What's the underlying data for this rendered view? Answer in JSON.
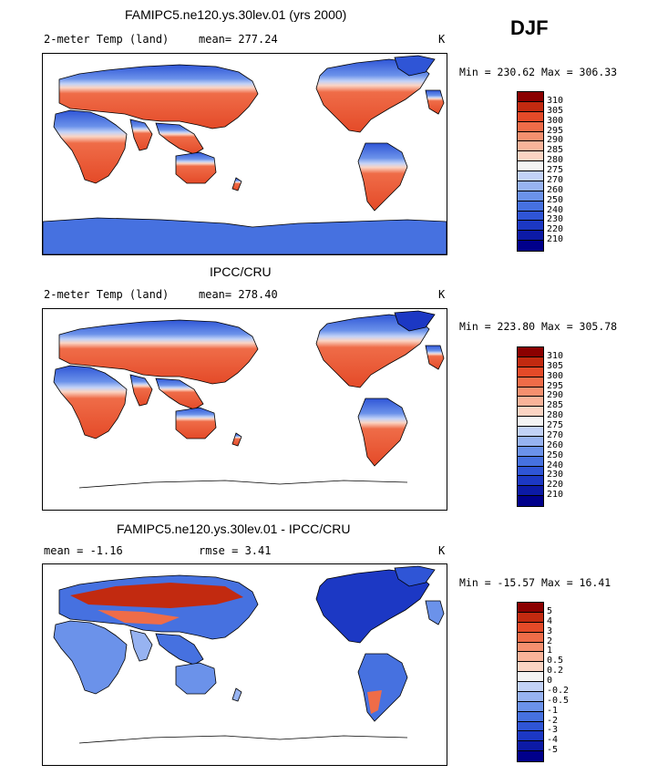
{
  "season": "DJF",
  "colors": {
    "abs": [
      "#00008b",
      "#0c1aa6",
      "#1c38c4",
      "#2f55d6",
      "#4671e0",
      "#6b92ea",
      "#97b3f1",
      "#c2d2f7",
      "#f4f4f4",
      "#fbd4c3",
      "#f9b399",
      "#f5906f",
      "#ef6c48",
      "#e44a28",
      "#c22a10",
      "#8b0000"
    ],
    "diff": [
      "#00008b",
      "#0c1aa6",
      "#1c38c4",
      "#2f55d6",
      "#4671e0",
      "#6b92ea",
      "#97b3f1",
      "#c2d2f7",
      "#f4f4f4",
      "#fbd4c3",
      "#f9b399",
      "#f5906f",
      "#ef6c48",
      "#e44a28",
      "#c22a10",
      "#8b0000"
    ]
  },
  "panels": [
    {
      "title": "FAMIPC5.ne120.ys.30lev.01 (yrs 2000)",
      "variable": "2-meter Temp (land)",
      "stat": "mean= 277.24",
      "units": "K",
      "min_max": "Min = 230.62 Max = 306.33",
      "ticks": [
        "310",
        "305",
        "300",
        "295",
        "290",
        "285",
        "280",
        "275",
        "270",
        "260",
        "250",
        "240",
        "230",
        "220",
        "210"
      ]
    },
    {
      "title": "IPCC/CRU",
      "variable": "2-meter Temp (land)",
      "stat": "mean= 278.40",
      "units": "K",
      "min_max": "Min = 223.80 Max = 305.78",
      "ticks": [
        "310",
        "305",
        "300",
        "295",
        "290",
        "285",
        "280",
        "275",
        "270",
        "260",
        "250",
        "240",
        "230",
        "220",
        "210"
      ]
    },
    {
      "title": "FAMIPC5.ne120.ys.30lev.01 - IPCC/CRU",
      "variable": "mean =   -1.16",
      "stat": "rmse =    3.41",
      "units": "K",
      "min_max": "Min = -15.57 Max =  16.41",
      "ticks": [
        "5",
        "4",
        "3",
        "2",
        "1",
        "0.5",
        "0.2",
        "0",
        "-0.2",
        "-0.5",
        "-1",
        "-2",
        "-3",
        "-4",
        "-5"
      ]
    }
  ]
}
